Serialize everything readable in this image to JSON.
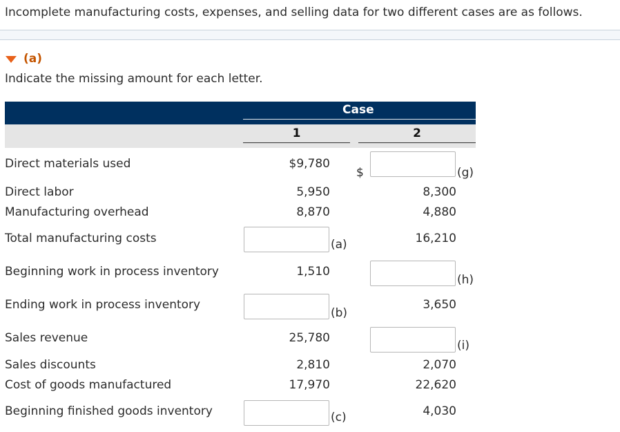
{
  "intro": "Incomplete manufacturing costs, expenses, and selling data for two different cases are as follows.",
  "section": {
    "part_label": "(a)",
    "instruction": "Indicate the missing amount for each letter."
  },
  "table": {
    "group_header": "Case",
    "columns": [
      "1",
      "2"
    ],
    "dollar_sign": "$",
    "rows": [
      {
        "label": "Direct materials used",
        "c1": "$9,780",
        "c2": "",
        "c2_letter": "(g)"
      },
      {
        "label": "Direct labor",
        "c1": "5,950",
        "c2": "8,300"
      },
      {
        "label": "Manufacturing overhead",
        "c1": "8,870",
        "c2": "4,880"
      },
      {
        "label": "Total manufacturing costs",
        "c1": "",
        "c1_letter": "(a)",
        "c2": "16,210"
      },
      {
        "label": "Beginning work in process inventory",
        "c1": "1,510",
        "c2": "",
        "c2_letter": "(h)"
      },
      {
        "label": "Ending work in process inventory",
        "c1": "",
        "c1_letter": "(b)",
        "c2": "3,650"
      },
      {
        "label": "Sales revenue",
        "c1": "25,780",
        "c2": "",
        "c2_letter": "(i)"
      },
      {
        "label": "Sales discounts",
        "c1": "2,810",
        "c2": "2,070"
      },
      {
        "label": "Cost of goods manufactured",
        "c1": "17,970",
        "c2": "22,620"
      },
      {
        "label": "Beginning finished goods inventory",
        "c1": "",
        "c1_letter": "(c)",
        "c2": "4,030"
      }
    ]
  },
  "colors": {
    "header_navy": "#00305f",
    "accent_orange": "#e8611a",
    "subheader_grey": "#e5e5e5"
  }
}
